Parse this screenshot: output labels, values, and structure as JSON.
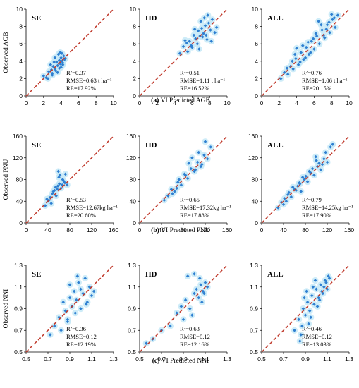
{
  "rows": [
    {
      "caption_letter": "(a)",
      "caption_text": "VI Predicted AGB",
      "ylabel": "Observed AGB",
      "ticks": [
        "0",
        "2",
        "4",
        "6",
        "8",
        "10"
      ],
      "range": [
        0,
        10
      ],
      "panels": [
        {
          "tag": "SE",
          "r2": "R²=0.37",
          "rmse": "RMSE=0.63 t ha⁻¹",
          "re": "RE=17.92%"
        },
        {
          "tag": "HD",
          "r2": "R²=0.51",
          "rmse": "RMSE=1.11 t ha⁻¹",
          "re": "RE=16.52%"
        },
        {
          "tag": "ALL",
          "r2": "R²=0.76",
          "rmse": "RMSE=1.06 t ha⁻¹",
          "re": "RE=20.15%"
        }
      ]
    },
    {
      "caption_letter": "(b)",
      "caption_text": "VI Predicted PNU",
      "ylabel": "Observed PNU",
      "ticks": [
        "0",
        "40",
        "80",
        "120",
        "160"
      ],
      "range": [
        0,
        160
      ],
      "panels": [
        {
          "tag": "SE",
          "r2": "R²=0.53",
          "rmse": "RMSE=12.67kg ha⁻¹",
          "re": "RE=20.60%"
        },
        {
          "tag": "HD",
          "r2": "R²=0.65",
          "rmse": "RMSE=17.32kg ha⁻¹",
          "re": "RE=17.88%"
        },
        {
          "tag": "ALL",
          "r2": "R²=0.79",
          "rmse": "RMSE=14.25kg ha⁻¹",
          "re": "RE=17.90%"
        }
      ]
    },
    {
      "caption_letter": "(c)",
      "caption_text": "VI Predicted NNI",
      "ylabel": "Observed NNI",
      "ticks": [
        "0.5",
        "0.7",
        "0.9",
        "1.1",
        "1.3"
      ],
      "range": [
        0.5,
        1.3
      ],
      "panels": [
        {
          "tag": "SE",
          "r2": "R²=0.36",
          "rmse": "RMSE=0.12",
          "re": "RE=12.19%"
        },
        {
          "tag": "HD",
          "r2": "R²=0.63",
          "rmse": "RMSE=0.12",
          "re": "RE=12.16%"
        },
        {
          "tag": "ALL",
          "r2": "R²=0.46",
          "rmse": "RMSE=0.12",
          "re": "RE=13.03%"
        }
      ]
    }
  ],
  "colors": {
    "points": "#2e7fd1",
    "halo": "#c6e9f7",
    "line": "#c0392b",
    "axis": "#000000"
  },
  "chart_data": [
    {
      "type": "scatter",
      "title": "(a) SE",
      "xlim": [
        0,
        10
      ],
      "ylim": [
        0,
        10
      ],
      "x": [
        2.0,
        2.3,
        2.6,
        2.9,
        3.1,
        3.3,
        3.5,
        3.6,
        3.8,
        3.9,
        4.0,
        4.1,
        4.2,
        4.3,
        4.0,
        3.7,
        3.4,
        3.0,
        2.8,
        4.4,
        3.2,
        3.9,
        4.1,
        3.6,
        2.5,
        3.3,
        4.2,
        3.8,
        3.0,
        4.5
      ],
      "y": [
        2.3,
        2.1,
        2.8,
        3.0,
        3.4,
        3.1,
        3.9,
        3.5,
        4.1,
        3.7,
        4.4,
        4.0,
        3.8,
        4.6,
        3.3,
        4.8,
        2.9,
        2.6,
        3.6,
        4.2,
        3.9,
        5.0,
        4.9,
        2.7,
        2.0,
        4.4,
        3.6,
        3.2,
        2.4,
        4.3
      ]
    },
    {
      "type": "scatter",
      "title": "(a) HD",
      "xlim": [
        0,
        10
      ],
      "ylim": [
        0,
        10
      ],
      "x": [
        4.6,
        5.0,
        5.4,
        5.7,
        5.9,
        6.2,
        6.4,
        6.7,
        6.9,
        7.1,
        7.3,
        7.5,
        7.7,
        7.9,
        8.1,
        8.3,
        8.6,
        5.5,
        6.0,
        6.6,
        7.0,
        7.4,
        7.8,
        8.2,
        8.8,
        6.3,
        6.8,
        7.2,
        7.6,
        5.2
      ],
      "y": [
        4.9,
        5.7,
        6.1,
        6.3,
        5.8,
        7.0,
        6.6,
        7.5,
        6.9,
        7.8,
        7.2,
        8.1,
        6.5,
        8.4,
        7.6,
        8.8,
        7.3,
        5.1,
        5.6,
        6.0,
        8.6,
        9.0,
        9.3,
        6.3,
        7.9,
        7.7,
        5.4,
        6.8,
        7.0,
        6.4
      ]
    },
    {
      "type": "scatter",
      "title": "(a) ALL",
      "xlim": [
        0,
        10
      ],
      "ylim": [
        0,
        10
      ],
      "x": [
        2.2,
        2.6,
        3.0,
        3.3,
        3.6,
        3.9,
        4.2,
        4.5,
        4.8,
        5.1,
        5.4,
        5.7,
        6.0,
        6.3,
        6.6,
        6.9,
        7.2,
        7.5,
        7.8,
        8.1,
        8.4,
        8.7,
        3.8,
        4.4,
        5.0,
        5.6,
        6.2,
        6.8,
        7.4,
        8.0,
        4.0,
        4.7,
        5.3,
        5.9,
        6.5,
        7.1,
        7.7,
        8.3,
        3.5,
        2.9
      ],
      "y": [
        2.0,
        2.7,
        2.5,
        3.4,
        3.1,
        4.3,
        3.6,
        5.0,
        4.2,
        5.6,
        4.8,
        6.3,
        5.4,
        6.9,
        6.0,
        7.6,
        6.7,
        8.2,
        7.3,
        8.8,
        7.9,
        9.3,
        4.8,
        3.9,
        4.4,
        5.0,
        7.2,
        8.2,
        7.7,
        9.4,
        5.5,
        5.8,
        6.2,
        6.6,
        8.6,
        7.0,
        8.5,
        9.0,
        4.0,
        3.2
      ]
    },
    {
      "type": "scatter",
      "title": "(b) SE",
      "xlim": [
        0,
        160
      ],
      "ylim": [
        0,
        160
      ],
      "x": [
        35,
        40,
        44,
        48,
        52,
        55,
        58,
        61,
        64,
        67,
        70,
        72,
        75,
        46,
        50,
        57,
        62,
        68,
        38,
        54,
        60,
        66,
        42,
        59,
        71
      ],
      "y": [
        32,
        40,
        47,
        54,
        60,
        50,
        68,
        72,
        64,
        80,
        75,
        90,
        70,
        36,
        58,
        62,
        88,
        78,
        44,
        66,
        84,
        70,
        42,
        95,
        74
      ]
    },
    {
      "type": "scatter",
      "title": "(b) HD",
      "xlim": [
        0,
        160
      ],
      "ylim": [
        0,
        160
      ],
      "x": [
        45,
        52,
        58,
        64,
        70,
        76,
        82,
        88,
        94,
        100,
        106,
        112,
        118,
        124,
        130,
        60,
        72,
        84,
        96,
        108,
        120,
        68,
        90,
        102,
        114
      ],
      "y": [
        42,
        50,
        62,
        58,
        75,
        70,
        90,
        82,
        100,
        95,
        112,
        104,
        125,
        118,
        140,
        54,
        80,
        88,
        120,
        130,
        150,
        64,
        110,
        98,
        108
      ]
    },
    {
      "type": "scatter",
      "title": "(b) ALL",
      "xlim": [
        0,
        160
      ],
      "ylim": [
        0,
        160
      ],
      "x": [
        30,
        36,
        42,
        48,
        54,
        60,
        66,
        72,
        78,
        84,
        90,
        96,
        102,
        108,
        114,
        120,
        126,
        45,
        57,
        69,
        81,
        93,
        105,
        117,
        50,
        63,
        75,
        87,
        99,
        111,
        40,
        70,
        100,
        130
      ],
      "y": [
        28,
        38,
        45,
        52,
        48,
        62,
        68,
        58,
        80,
        76,
        92,
        88,
        104,
        98,
        118,
        112,
        140,
        40,
        66,
        74,
        86,
        100,
        110,
        130,
        56,
        60,
        84,
        95,
        122,
        108,
        34,
        72,
        115,
        145
      ]
    },
    {
      "type": "scatter",
      "title": "(c) SE",
      "xlim": [
        0.5,
        1.3
      ],
      "ylim": [
        0.5,
        1.3
      ],
      "x": [
        0.72,
        0.76,
        0.8,
        0.84,
        0.86,
        0.88,
        0.9,
        0.92,
        0.94,
        0.96,
        0.98,
        1.0,
        1.02,
        1.04,
        1.06,
        1.08,
        1.1,
        1.12,
        0.82,
        0.9,
        0.95,
        1.0,
        1.05,
        0.88,
        0.97
      ],
      "y": [
        0.66,
        0.74,
        0.82,
        0.96,
        0.88,
        0.8,
        1.0,
        0.92,
        1.06,
        0.98,
        1.14,
        0.9,
        1.04,
        1.18,
        0.96,
        1.1,
        1.02,
        1.06,
        0.7,
        1.12,
        0.86,
        1.08,
        0.94,
        0.78,
        1.2
      ]
    },
    {
      "type": "scatter",
      "title": "(c) HD",
      "xlim": [
        0.5,
        1.3
      ],
      "ylim": [
        0.5,
        1.3
      ],
      "x": [
        0.56,
        0.62,
        0.7,
        0.78,
        0.84,
        0.88,
        0.92,
        0.96,
        1.0,
        1.02,
        1.04,
        1.06,
        1.08,
        1.1,
        1.12,
        0.94,
        0.98,
        1.05,
        1.09,
        0.9,
        1.0,
        1.07
      ],
      "y": [
        0.58,
        0.62,
        0.7,
        0.74,
        0.86,
        0.92,
        0.98,
        0.9,
        1.04,
        1.08,
        1.0,
        1.12,
        1.06,
        1.14,
        1.1,
        1.2,
        0.84,
        1.18,
        1.04,
        0.8,
        1.22,
        0.96
      ]
    },
    {
      "type": "scatter",
      "title": "(c) ALL",
      "xlim": [
        0.5,
        1.3
      ],
      "ylim": [
        0.5,
        1.3
      ],
      "x": [
        0.8,
        0.84,
        0.86,
        0.88,
        0.9,
        0.92,
        0.94,
        0.96,
        0.98,
        1.0,
        1.02,
        1.04,
        1.06,
        1.08,
        1.1,
        1.12,
        0.85,
        0.89,
        0.93,
        0.97,
        1.01,
        1.05,
        1.09,
        0.91,
        0.95,
        0.99,
        1.03,
        1.07,
        0.87,
        1.11
      ],
      "y": [
        0.7,
        0.8,
        0.66,
        0.9,
        0.84,
        0.96,
        0.88,
        1.02,
        0.94,
        1.08,
        1.0,
        1.12,
        1.04,
        1.16,
        1.08,
        1.18,
        0.6,
        1.0,
        0.76,
        1.1,
        0.92,
        1.06,
        1.14,
        1.06,
        0.82,
        1.16,
        0.98,
        1.1,
        0.74,
        1.2
      ]
    }
  ]
}
